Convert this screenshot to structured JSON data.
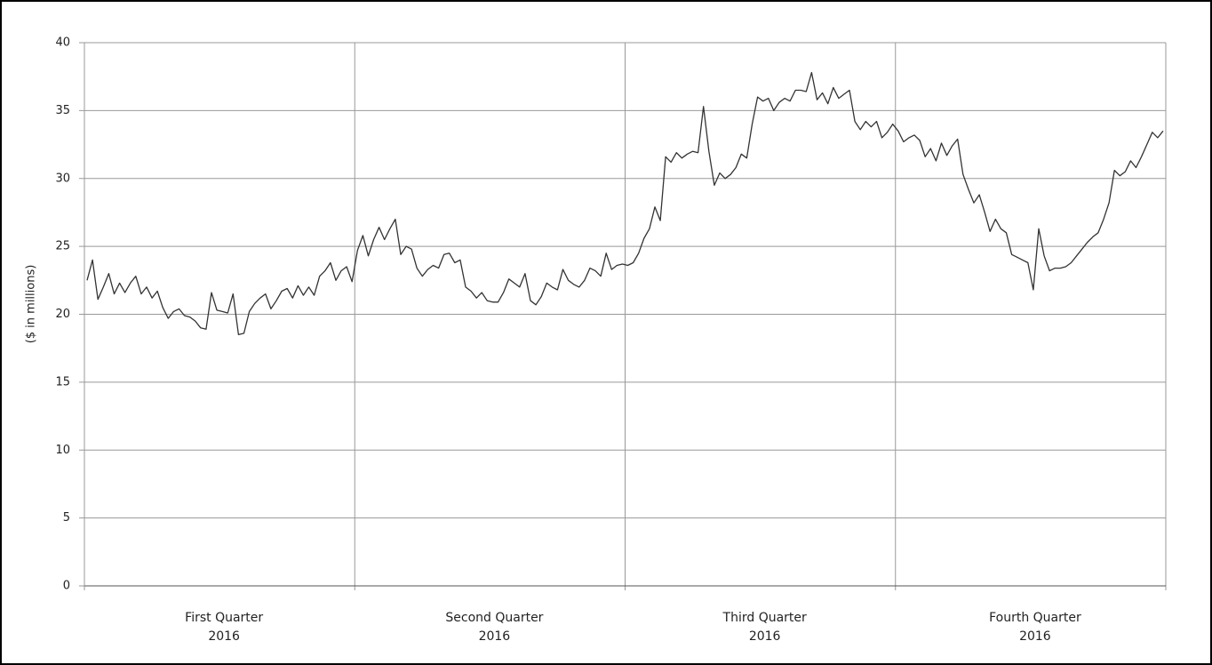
{
  "chart_data": {
    "type": "line",
    "y_label": "($ in millions)",
    "categories": [
      null,
      null,
      null,
      null,
      null,
      null,
      null,
      null,
      null,
      null,
      null,
      null,
      null,
      null,
      null,
      null,
      null,
      null,
      null,
      null,
      null,
      null,
      null,
      null,
      null,
      "First Quarter\n2016",
      null,
      null,
      null,
      null,
      null,
      null,
      null,
      null,
      null,
      null,
      null,
      null,
      null,
      null,
      null,
      null,
      null,
      null,
      null,
      null,
      null,
      null,
      null,
      null,
      null,
      null,
      null,
      null,
      null,
      null,
      null,
      null,
      null,
      null,
      null,
      null,
      null,
      null,
      null,
      null,
      null,
      null,
      null,
      null,
      null,
      null,
      null,
      null,
      null,
      "Second Quarter\n2016",
      null,
      null,
      null,
      null,
      null,
      null,
      null,
      null,
      null,
      null,
      null,
      null,
      null,
      null,
      null,
      null,
      null,
      null,
      null,
      null,
      null,
      null,
      null,
      null,
      null,
      null,
      null,
      null,
      null,
      null,
      null,
      null,
      null,
      null,
      null,
      null,
      null,
      null,
      null,
      null,
      null,
      null,
      null,
      null,
      null,
      null,
      null,
      null,
      null,
      "Third Quarter\n2016",
      null,
      null,
      null,
      null,
      null,
      null,
      null,
      null,
      null,
      null,
      null,
      null,
      null,
      null,
      null,
      null,
      null,
      null,
      null,
      null,
      null,
      null,
      null,
      null,
      null,
      null,
      null,
      null,
      null,
      null,
      null,
      null,
      null,
      null,
      null,
      null,
      null,
      null,
      null,
      null,
      null,
      null,
      null,
      null,
      null,
      null,
      null,
      null,
      null,
      "Fourth Quarter\n2016",
      null,
      null,
      null,
      null,
      null,
      null,
      null,
      null,
      null,
      null,
      null,
      null,
      null,
      null,
      null,
      null,
      null,
      null,
      null,
      null,
      null,
      null,
      null,
      null
    ],
    "values": [
      22.5,
      24.0,
      21.1,
      22.0,
      23.0,
      21.5,
      22.3,
      21.6,
      22.3,
      22.8,
      21.5,
      22.0,
      21.2,
      21.7,
      20.5,
      19.7,
      20.2,
      20.4,
      19.9,
      19.8,
      19.5,
      19.0,
      18.9,
      21.6,
      20.3,
      20.2,
      20.1,
      21.5,
      18.5,
      18.6,
      20.2,
      20.8,
      21.2,
      21.5,
      20.4,
      21.0,
      21.7,
      21.9,
      21.2,
      22.1,
      21.4,
      22.0,
      21.4,
      22.8,
      23.2,
      23.8,
      22.5,
      23.2,
      23.5,
      22.4,
      24.7,
      25.8,
      24.3,
      25.5,
      26.4,
      25.5,
      26.3,
      27.0,
      24.4,
      25.0,
      24.8,
      23.4,
      22.8,
      23.3,
      23.6,
      23.4,
      24.4,
      24.5,
      23.8,
      24.0,
      22.0,
      21.7,
      21.2,
      21.6,
      21.0,
      20.9,
      20.9,
      21.6,
      22.6,
      22.3,
      22.0,
      23.0,
      21.0,
      20.7,
      21.3,
      22.3,
      22.0,
      21.8,
      23.3,
      22.5,
      22.2,
      22.0,
      22.5,
      23.4,
      23.2,
      22.8,
      24.5,
      23.3,
      23.6,
      23.7,
      23.6,
      23.8,
      24.5,
      25.6,
      26.3,
      27.9,
      26.9,
      31.6,
      31.2,
      31.9,
      31.5,
      31.8,
      32.0,
      31.9,
      35.3,
      32.0,
      29.5,
      30.4,
      30.0,
      30.3,
      30.8,
      31.8,
      31.5,
      34.0,
      36.0,
      35.7,
      35.9,
      35.0,
      35.6,
      35.9,
      35.7,
      36.5,
      36.5,
      36.4,
      37.8,
      35.8,
      36.3,
      35.5,
      36.7,
      35.9,
      36.2,
      36.5,
      34.2,
      33.6,
      34.2,
      33.8,
      34.2,
      33.0,
      33.4,
      34.0,
      33.5,
      32.7,
      33.0,
      33.2,
      32.8,
      31.6,
      32.2,
      31.3,
      32.6,
      31.7,
      32.4,
      32.9,
      30.3,
      29.2,
      28.2,
      28.8,
      27.5,
      26.1,
      27.0,
      26.3,
      26.0,
      24.4,
      24.2,
      24.0,
      23.8,
      21.8,
      26.3,
      24.3,
      23.2,
      23.4,
      23.4,
      23.5,
      23.8,
      24.3,
      24.8,
      25.3,
      25.7,
      26.0,
      27.0,
      28.2,
      30.6,
      30.2,
      30.5,
      31.3,
      30.8,
      31.6,
      32.5,
      33.4,
      33.0,
      33.5
    ],
    "color": "#333333",
    "ylim": [
      0,
      40
    ],
    "yticks": [
      0,
      5,
      10,
      15,
      20,
      25,
      30,
      35,
      40
    ],
    "grid": true
  }
}
